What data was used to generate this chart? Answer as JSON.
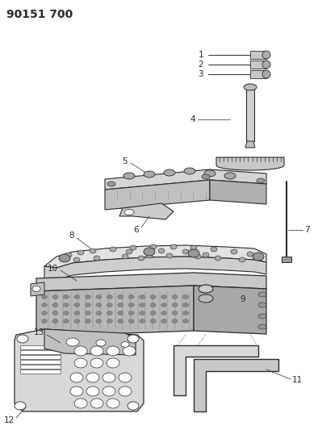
{
  "title": "90151 700",
  "bg_color": "#ffffff",
  "line_color": "#2a2a2a",
  "title_fontsize": 10,
  "label_fontsize": 7.5,
  "figsize": [
    3.94,
    5.33
  ],
  "dpi": 100
}
